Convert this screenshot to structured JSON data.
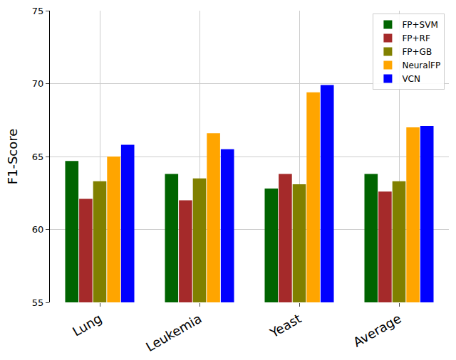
{
  "chart_data": {
    "type": "bar",
    "y_label": "F1-Score",
    "categories": [
      "Lung",
      "Leukemia",
      "Yeast",
      "Average"
    ],
    "series": [
      {
        "name": "FP+SVM",
        "color": "#006400",
        "values": [
          64.7,
          63.8,
          62.8,
          63.8
        ]
      },
      {
        "name": "FP+RF",
        "color": "#a52a2a",
        "values": [
          62.1,
          62.0,
          63.8,
          62.6
        ]
      },
      {
        "name": "FP+GB",
        "color": "#808000",
        "values": [
          63.3,
          63.5,
          63.1,
          63.3
        ]
      },
      {
        "name": "NeuralFP",
        "color": "#ffa500",
        "values": [
          65.0,
          66.6,
          69.4,
          67.0
        ]
      },
      {
        "name": "VCN",
        "color": "#0000ff",
        "values": [
          65.8,
          65.5,
          69.9,
          67.1
        ]
      }
    ],
    "ylim": [
      55,
      75
    ],
    "yticks": [
      55,
      60,
      65,
      70,
      75
    ],
    "grid": true,
    "legend": "top-right"
  }
}
